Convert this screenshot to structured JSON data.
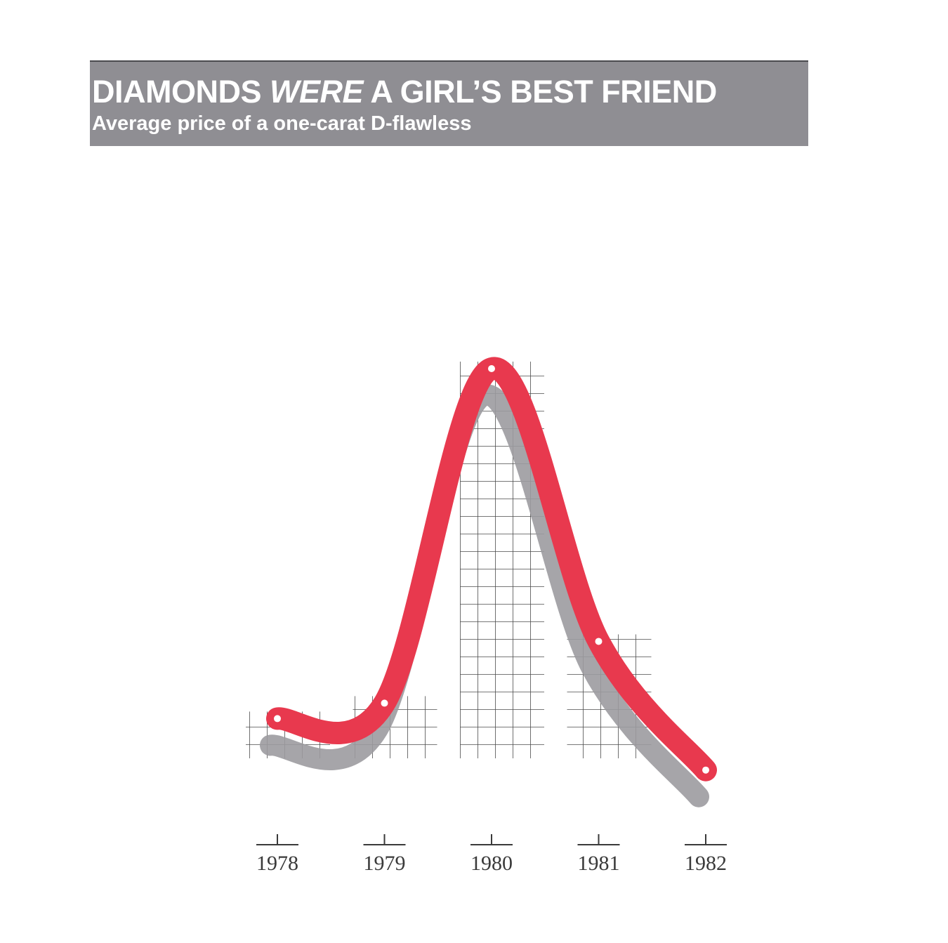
{
  "header": {
    "title_pre": "DIAMONDS ",
    "title_em": "WERE",
    "title_post": " A GIRL’S BEST FRIEND",
    "subtitle": "Average price of a one-carat D-flawless"
  },
  "colors": {
    "band": "#8f8e93",
    "line": "#e8394e",
    "shadow": "#9c9ba0",
    "grid": "#2b2b2b"
  },
  "chart_data": {
    "type": "line",
    "title": "DIAMONDS WERE A GIRL’S BEST FRIEND",
    "subtitle": "Average price of a one-carat D-flawless",
    "x": [
      1978,
      1979,
      1980,
      1981,
      1982
    ],
    "categories": [
      "1978",
      "1979",
      "1980",
      "1981",
      "1982"
    ],
    "values": [
      20,
      23,
      88,
      35,
      10
    ],
    "ylim": [
      0,
      100
    ],
    "grid": true,
    "legend": "none"
  }
}
